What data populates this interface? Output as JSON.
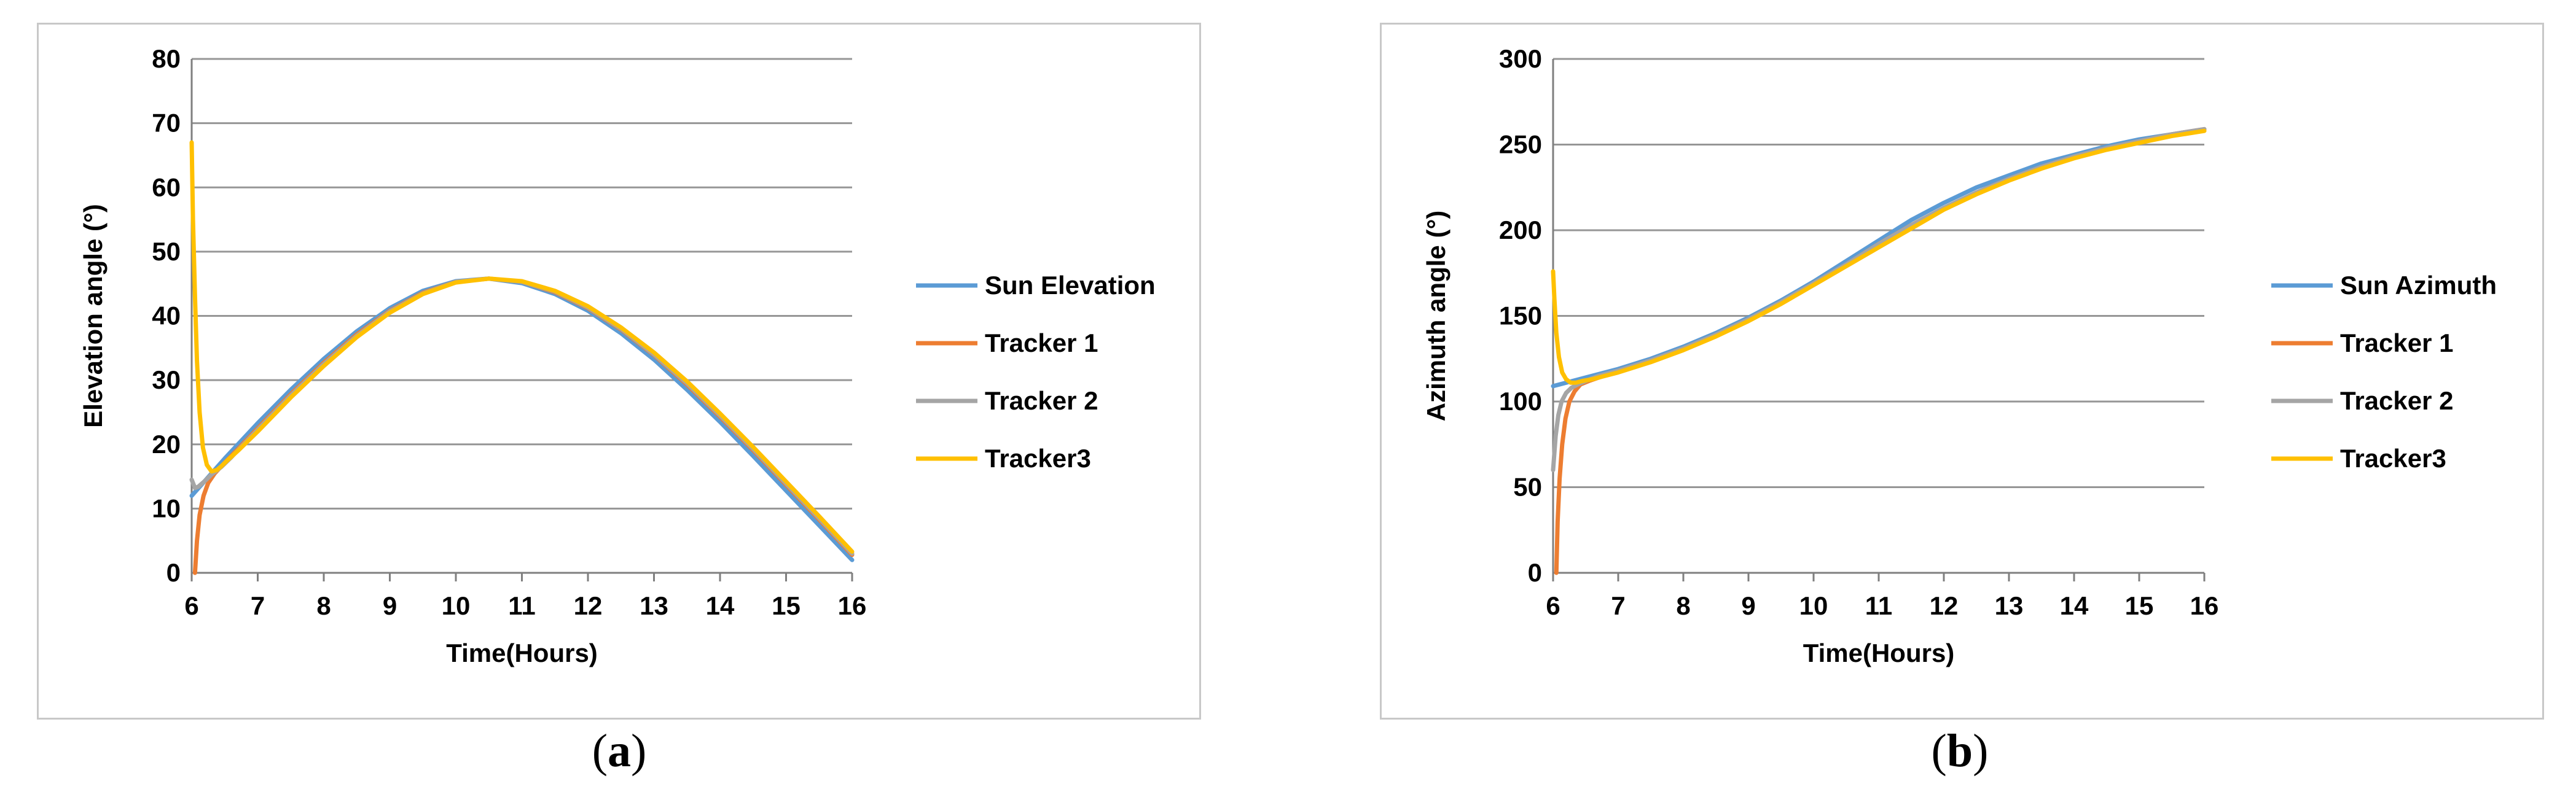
{
  "chart_data": [
    {
      "type": "line",
      "panel_label": "a",
      "xlabel": "Time(Hours)",
      "ylabel": "Elevation angle (°)",
      "xlim": [
        6,
        16
      ],
      "ylim": [
        0,
        80
      ],
      "xticks": [
        6,
        7,
        8,
        9,
        10,
        11,
        12,
        13,
        14,
        15,
        16
      ],
      "yticks": [
        0,
        10,
        20,
        30,
        40,
        50,
        60,
        70,
        80
      ],
      "grid": "horizontal",
      "legend_position": "right",
      "series": [
        {
          "name": "Sun Elevation",
          "color": "#5b9bd5",
          "x": [
            6,
            6.5,
            7,
            7.5,
            8,
            8.5,
            9,
            9.5,
            10,
            10.5,
            11,
            11.5,
            12,
            12.5,
            13,
            13.5,
            14,
            14.5,
            15,
            15.5,
            16
          ],
          "y": [
            12,
            17.8,
            23.3,
            28.5,
            33.3,
            37.6,
            41.2,
            43.9,
            45.4,
            45.8,
            45.1,
            43.4,
            40.8,
            37.3,
            33.2,
            28.5,
            23.5,
            18.2,
            12.8,
            7.4,
            2
          ]
        },
        {
          "name": "Tracker 1",
          "color": "#ed7d31",
          "x": [
            6.05,
            6.08,
            6.12,
            6.18,
            6.25,
            6.35,
            6.45,
            6.6,
            7,
            7.5,
            8,
            8.5,
            9,
            9.5,
            10,
            10.5,
            11,
            11.5,
            12,
            12.5,
            13,
            13.5,
            14,
            14.5,
            15,
            15.5,
            16
          ],
          "y": [
            0,
            5,
            9,
            12,
            14,
            15.5,
            16.6,
            18.2,
            22.5,
            27.8,
            32.7,
            37.1,
            40.8,
            43.6,
            45.3,
            45.8,
            45.3,
            43.7,
            41.2,
            37.9,
            33.9,
            29.3,
            24.3,
            19.1,
            13.7,
            8.3,
            2.8
          ]
        },
        {
          "name": "Tracker 2",
          "color": "#a5a5a5",
          "x": [
            6,
            6.05,
            6.1,
            6.2,
            6.3,
            6.45,
            6.6,
            7,
            7.5,
            8,
            8.5,
            9,
            9.5,
            10,
            10.5,
            11,
            11.5,
            12,
            12.5,
            13,
            13.5,
            14,
            14.5,
            15,
            15.5,
            16
          ],
          "y": [
            14.5,
            13.2,
            13.4,
            14.3,
            15.3,
            16.5,
            18,
            22.3,
            27.6,
            32.5,
            36.9,
            40.7,
            43.5,
            45.3,
            45.8,
            45.3,
            43.8,
            41.3,
            38,
            34,
            29.5,
            24.5,
            19.3,
            13.9,
            8.5,
            3
          ]
        },
        {
          "name": "Tracker3",
          "color": "#ffc000",
          "x": [
            6,
            6.02,
            6.05,
            6.08,
            6.12,
            6.17,
            6.23,
            6.3,
            6.38,
            6.45,
            6.55,
            6.7,
            7,
            7.5,
            8,
            8.5,
            9,
            9.5,
            10,
            10.5,
            11,
            11.5,
            12,
            12.5,
            13,
            13.5,
            14,
            14.5,
            15,
            15.5,
            16
          ],
          "y": [
            67,
            55,
            43,
            33,
            25,
            19.5,
            16.8,
            15.8,
            16,
            16.6,
            17.6,
            19,
            22,
            27.3,
            32.2,
            36.7,
            40.5,
            43.4,
            45.2,
            45.8,
            45.4,
            43.9,
            41.5,
            38.2,
            34.3,
            29.8,
            24.8,
            19.6,
            14.2,
            8.8,
            3.3
          ]
        }
      ]
    },
    {
      "type": "line",
      "panel_label": "b",
      "xlabel": "Time(Hours)",
      "ylabel": "Azimuth angle (°)",
      "xlim": [
        6,
        16
      ],
      "ylim": [
        0,
        300
      ],
      "xticks": [
        6,
        7,
        8,
        9,
        10,
        11,
        12,
        13,
        14,
        15,
        16
      ],
      "yticks": [
        0,
        50,
        100,
        150,
        200,
        250,
        300
      ],
      "grid": "horizontal",
      "legend_position": "right",
      "series": [
        {
          "name": "Sun Azimuth",
          "color": "#5b9bd5",
          "x": [
            6,
            6.5,
            7,
            7.5,
            8,
            8.5,
            9,
            9.5,
            10,
            10.5,
            11,
            11.5,
            12,
            12.5,
            13,
            13.5,
            14,
            14.5,
            15,
            15.5,
            16
          ],
          "y": [
            109,
            114,
            119,
            125,
            132,
            140,
            149,
            159,
            170,
            182,
            194,
            206,
            216,
            225,
            232,
            239,
            244,
            249,
            253,
            256,
            259
          ]
        },
        {
          "name": "Tracker 1",
          "color": "#ed7d31",
          "x": [
            6.05,
            6.07,
            6.1,
            6.14,
            6.19,
            6.25,
            6.33,
            6.42,
            6.55,
            6.7,
            7,
            7.5,
            8,
            8.5,
            9,
            9.5,
            10,
            10.5,
            11,
            11.5,
            12,
            12.5,
            13,
            13.5,
            14,
            14.5,
            15,
            15.5,
            16
          ],
          "y": [
            0,
            30,
            55,
            75,
            90,
            100,
            106,
            110,
            112,
            114,
            118,
            124,
            131,
            139,
            148,
            158,
            169,
            180,
            192,
            203,
            213,
            222,
            230,
            237,
            243,
            248,
            252,
            256,
            259
          ]
        },
        {
          "name": "Tracker 2",
          "color": "#a5a5a5",
          "x": [
            6,
            6.04,
            6.08,
            6.13,
            6.2,
            6.28,
            6.38,
            6.5,
            6.7,
            7,
            7.5,
            8,
            8.5,
            9,
            9.5,
            10,
            10.5,
            11,
            11.5,
            12,
            12.5,
            13,
            13.5,
            14,
            14.5,
            15,
            15.5,
            16
          ],
          "y": [
            60,
            80,
            92,
            100,
            105,
            108,
            110,
            112,
            115,
            118,
            124,
            131,
            139,
            148,
            158,
            169,
            180,
            192,
            203,
            213,
            222,
            230,
            237,
            243,
            248,
            252,
            256,
            259
          ]
        },
        {
          "name": "Tracker3",
          "color": "#ffc000",
          "x": [
            6,
            6.02,
            6.05,
            6.09,
            6.14,
            6.2,
            6.27,
            6.35,
            6.45,
            6.6,
            6.8,
            7,
            7.5,
            8,
            8.5,
            9,
            9.5,
            10,
            10.5,
            11,
            11.5,
            12,
            12.5,
            13,
            13.5,
            14,
            14.5,
            15,
            15.5,
            16
          ],
          "y": [
            176,
            160,
            140,
            126,
            117,
            113,
            111,
            111,
            112,
            113,
            115,
            117,
            123,
            130,
            138,
            147,
            157,
            168,
            179,
            190,
            201,
            212,
            221,
            229,
            236,
            242,
            247,
            251,
            255,
            258
          ]
        }
      ]
    }
  ]
}
